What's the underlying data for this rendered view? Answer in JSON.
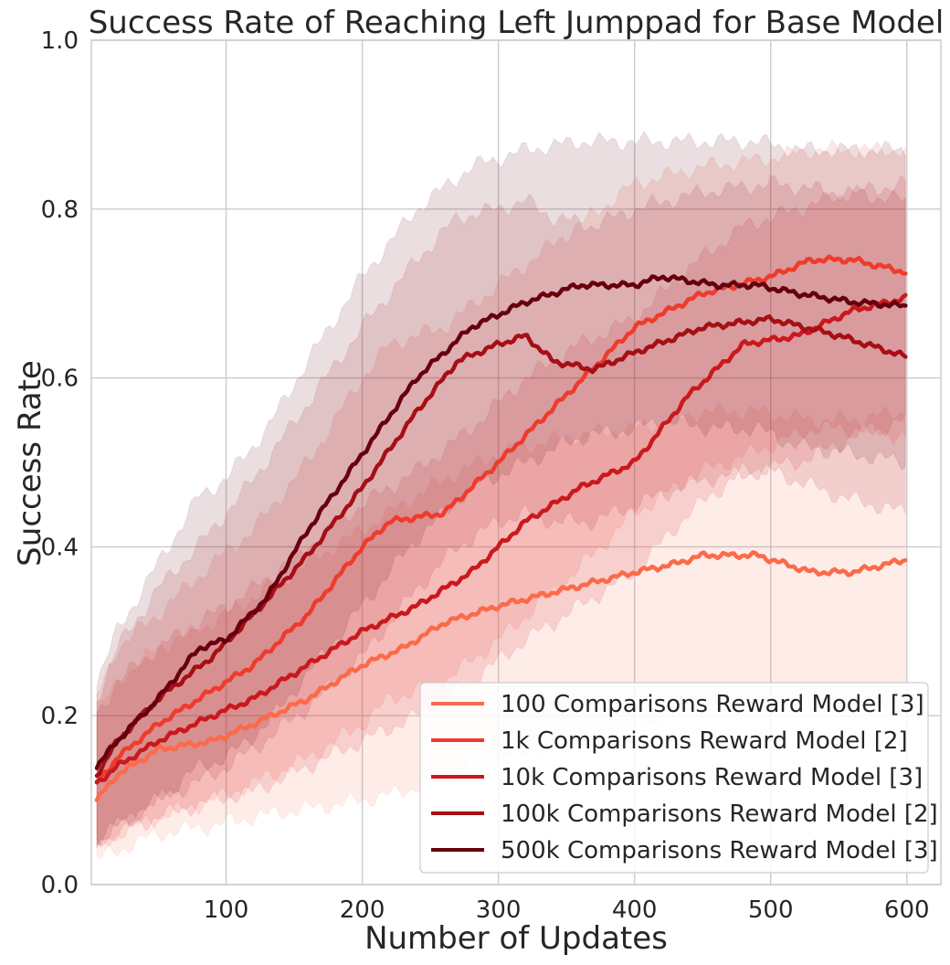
{
  "chart_data": {
    "type": "line",
    "title": "Success Rate of Reaching Left Jumppad for Base Model",
    "xlabel": "Number of Updates",
    "ylabel": "Success Rate",
    "xlim": [
      1,
      625
    ],
    "ylim": [
      0.0,
      1.0
    ],
    "xticks": [
      100,
      200,
      300,
      400,
      500,
      600
    ],
    "yticks": [
      0.0,
      0.2,
      0.4,
      0.6,
      0.8,
      1.0
    ],
    "xtick_labels": [
      "100",
      "200",
      "300",
      "400",
      "500",
      "600"
    ],
    "ytick_labels": [
      "0.0",
      "0.2",
      "0.4",
      "0.6",
      "0.8",
      "1.0"
    ],
    "grid": true,
    "legend_position": "lower-right",
    "series": [
      {
        "name": "100 Comparisons Reward Model [3]",
        "color": "#fb6a4a",
        "x": [
          5,
          20,
          50,
          90,
          120,
          160,
          200,
          230,
          260,
          300,
          350,
          400,
          430,
          450,
          490,
          530,
          560,
          600
        ],
        "y": [
          0.1,
          0.13,
          0.16,
          0.17,
          0.19,
          0.22,
          0.26,
          0.28,
          0.31,
          0.33,
          0.35,
          0.37,
          0.38,
          0.39,
          0.39,
          0.37,
          0.37,
          0.385
        ],
        "lower": [
          0.03,
          0.04,
          0.06,
          0.07,
          0.08,
          0.09,
          0.1,
          0.11,
          0.13,
          0.15,
          0.17,
          0.19,
          0.2,
          0.21,
          0.21,
          0.21,
          0.21,
          0.21
        ],
        "upper": [
          0.2,
          0.24,
          0.28,
          0.31,
          0.34,
          0.38,
          0.42,
          0.45,
          0.48,
          0.51,
          0.53,
          0.54,
          0.55,
          0.56,
          0.56,
          0.55,
          0.55,
          0.56
        ]
      },
      {
        "name": "1k Comparisons Reward Model [2]",
        "color": "#ef3b2c",
        "x": [
          5,
          20,
          50,
          90,
          120,
          160,
          200,
          220,
          260,
          300,
          350,
          400,
          450,
          500,
          530,
          560,
          600
        ],
        "y": [
          0.12,
          0.15,
          0.19,
          0.23,
          0.26,
          0.32,
          0.4,
          0.43,
          0.44,
          0.5,
          0.58,
          0.66,
          0.7,
          0.72,
          0.74,
          0.74,
          0.725
        ],
        "lower": [
          0.04,
          0.06,
          0.08,
          0.1,
          0.12,
          0.15,
          0.19,
          0.22,
          0.24,
          0.29,
          0.36,
          0.44,
          0.49,
          0.52,
          0.54,
          0.54,
          0.53
        ],
        "upper": [
          0.22,
          0.28,
          0.32,
          0.38,
          0.42,
          0.5,
          0.6,
          0.64,
          0.66,
          0.71,
          0.77,
          0.83,
          0.85,
          0.86,
          0.87,
          0.87,
          0.87
        ]
      },
      {
        "name": "10k Comparisons Reward Model [3]",
        "color": "#cb181d",
        "x": [
          5,
          20,
          50,
          90,
          120,
          160,
          200,
          240,
          280,
          320,
          360,
          400,
          440,
          480,
          520,
          560,
          600
        ],
        "y": [
          0.12,
          0.14,
          0.17,
          0.2,
          0.22,
          0.26,
          0.3,
          0.33,
          0.37,
          0.43,
          0.47,
          0.5,
          0.58,
          0.64,
          0.65,
          0.68,
          0.695
        ],
        "lower": [
          0.05,
          0.06,
          0.08,
          0.1,
          0.11,
          0.14,
          0.17,
          0.2,
          0.24,
          0.29,
          0.33,
          0.37,
          0.44,
          0.49,
          0.5,
          0.53,
          0.55
        ],
        "upper": [
          0.2,
          0.24,
          0.28,
          0.32,
          0.35,
          0.4,
          0.45,
          0.49,
          0.54,
          0.6,
          0.64,
          0.67,
          0.73,
          0.78,
          0.8,
          0.82,
          0.83
        ]
      },
      {
        "name": "100k Comparisons Reward Model [2]",
        "color": "#a50f15",
        "x": [
          5,
          20,
          50,
          90,
          120,
          160,
          200,
          240,
          270,
          300,
          320,
          340,
          370,
          400,
          450,
          500,
          550,
          600
        ],
        "y": [
          0.13,
          0.17,
          0.22,
          0.27,
          0.32,
          0.39,
          0.47,
          0.56,
          0.62,
          0.64,
          0.65,
          0.62,
          0.61,
          0.63,
          0.66,
          0.67,
          0.65,
          0.625
        ],
        "lower": [
          0.05,
          0.07,
          0.1,
          0.13,
          0.16,
          0.21,
          0.27,
          0.35,
          0.4,
          0.43,
          0.44,
          0.43,
          0.43,
          0.45,
          0.48,
          0.49,
          0.46,
          0.44
        ],
        "upper": [
          0.22,
          0.28,
          0.35,
          0.42,
          0.48,
          0.57,
          0.66,
          0.74,
          0.79,
          0.8,
          0.81,
          0.79,
          0.78,
          0.8,
          0.82,
          0.83,
          0.82,
          0.81
        ]
      },
      {
        "name": "500k Comparisons Reward Model [3]",
        "color": "#67000d",
        "x": [
          5,
          20,
          50,
          80,
          100,
          130,
          160,
          200,
          240,
          280,
          320,
          360,
          400,
          420,
          460,
          490,
          520,
          560,
          600
        ],
        "y": [
          0.14,
          0.17,
          0.22,
          0.28,
          0.29,
          0.34,
          0.42,
          0.51,
          0.6,
          0.66,
          0.69,
          0.71,
          0.71,
          0.72,
          0.71,
          0.71,
          0.7,
          0.69,
          0.685
        ],
        "lower": [
          0.05,
          0.07,
          0.1,
          0.14,
          0.15,
          0.19,
          0.25,
          0.33,
          0.41,
          0.47,
          0.5,
          0.53,
          0.54,
          0.55,
          0.54,
          0.54,
          0.52,
          0.51,
          0.5
        ],
        "upper": [
          0.24,
          0.3,
          0.38,
          0.46,
          0.48,
          0.54,
          0.62,
          0.72,
          0.8,
          0.85,
          0.87,
          0.88,
          0.88,
          0.88,
          0.88,
          0.88,
          0.87,
          0.87,
          0.87
        ]
      }
    ]
  }
}
